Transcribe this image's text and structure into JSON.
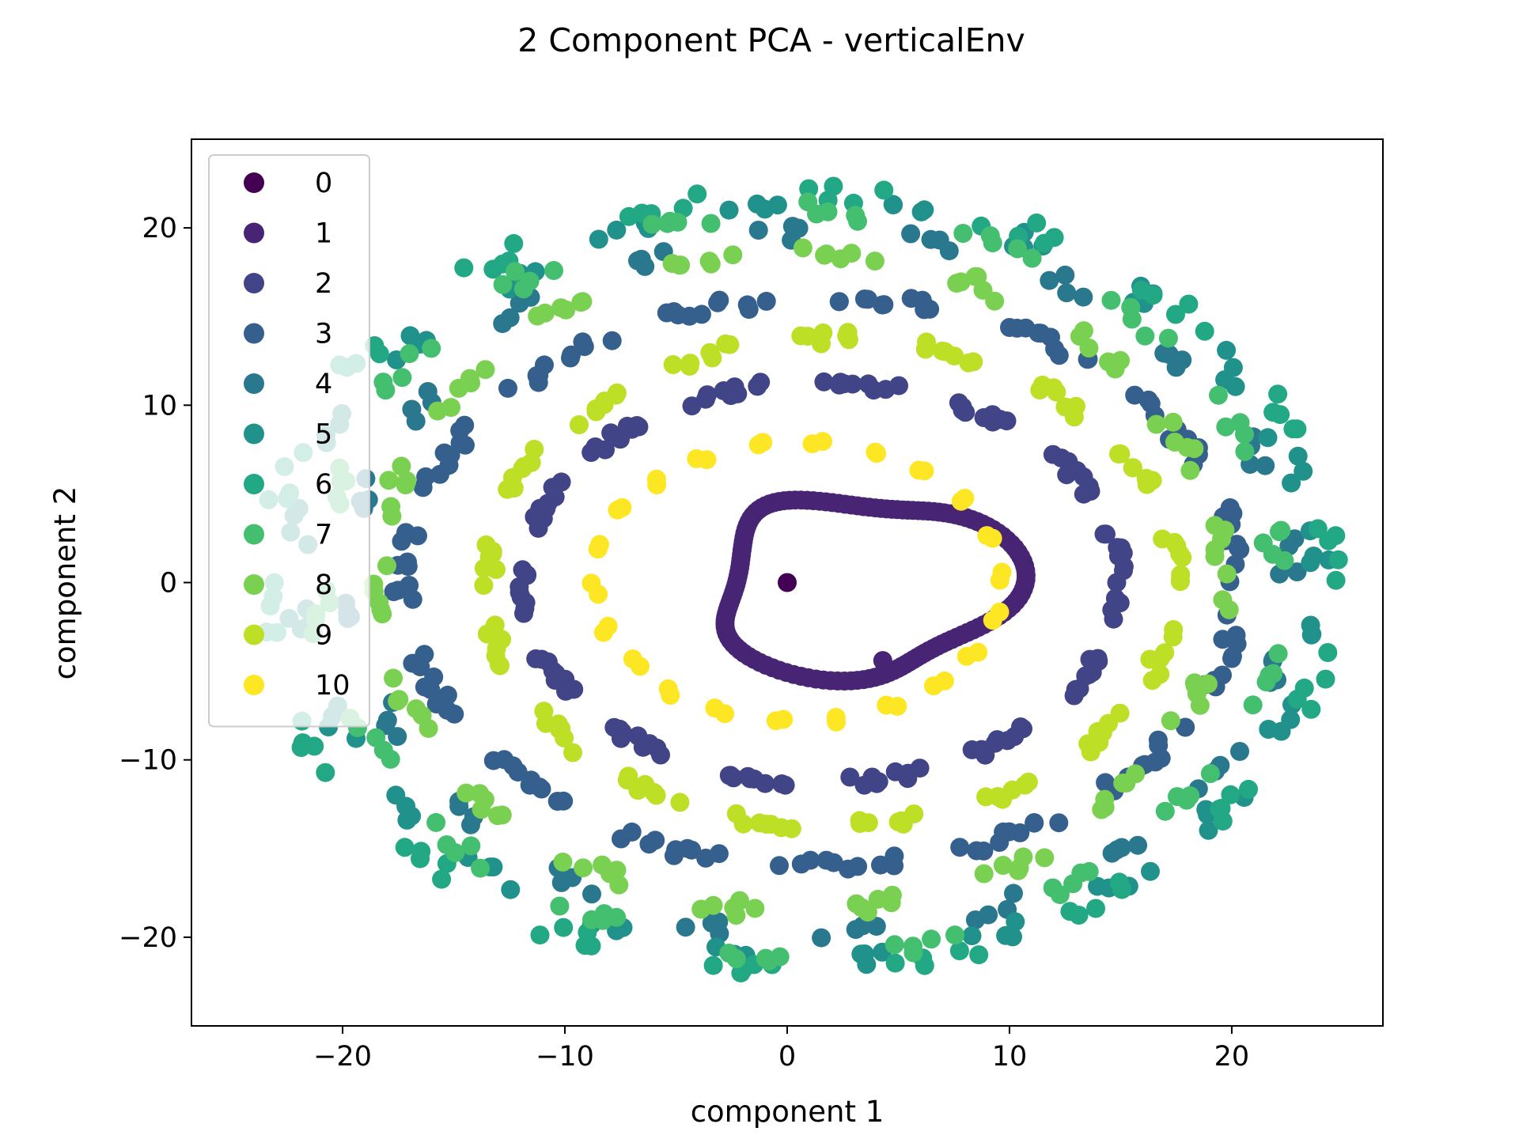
{
  "chart_data": {
    "type": "scatter",
    "title": "2 Component PCA - verticalEnv",
    "xlabel": "component 1",
    "ylabel": "component 2",
    "xlim": [
      -26.8,
      26.8
    ],
    "ylim": [
      -25,
      25
    ],
    "xticks": [
      -20,
      -10,
      0,
      10,
      20
    ],
    "yticks": [
      -20,
      -10,
      0,
      10,
      20
    ],
    "grid": false,
    "legend_position": "upper-left",
    "series": [
      {
        "name": "0",
        "color": "#440154",
        "shape": "single",
        "points": [
          [
            0,
            0
          ]
        ]
      },
      {
        "name": "1",
        "color": "#482475",
        "shape": "blob",
        "n": 150
      },
      {
        "name": "2",
        "color": "#414487",
        "shape": "ring",
        "cx": 1.5,
        "cy": 0,
        "rx": 13.5,
        "ry": 11.3,
        "n": 130,
        "arc": 9
      },
      {
        "name": "3",
        "color": "#355f8d",
        "shape": "ring",
        "cx": 1.5,
        "cy": 0,
        "rx": 18.8,
        "ry": 16.0,
        "n": 150,
        "arc": 10
      },
      {
        "name": "4",
        "color": "#2a788e",
        "shape": "ring",
        "cx": 1.5,
        "cy": 0,
        "rx": 21.0,
        "ry": 19.8,
        "n": 80,
        "arc": 4
      },
      {
        "name": "5",
        "color": "#21918c",
        "shape": "ring",
        "cx": 1.0,
        "cy": 0,
        "rx": 23.0,
        "ry": 21.2,
        "n": 95,
        "arc": 4
      },
      {
        "name": "6",
        "color": "#22a884",
        "shape": "ring",
        "cx": 0.5,
        "cy": 0,
        "rx": 24.0,
        "ry": 22.0,
        "n": 90,
        "arc": 5
      },
      {
        "name": "7",
        "color": "#44bf70",
        "shape": "ring",
        "cx": 0.5,
        "cy": 0,
        "rx": 21.5,
        "ry": 21.0,
        "n": 90,
        "arc": 5
      },
      {
        "name": "8",
        "color": "#7ad151",
        "shape": "ring",
        "cx": 0.5,
        "cy": 0,
        "rx": 19.0,
        "ry": 18.5,
        "n": 110,
        "arc": 6
      },
      {
        "name": "9",
        "color": "#bddf26",
        "shape": "ring",
        "cx": 2.0,
        "cy": 0,
        "rx": 15.5,
        "ry": 13.8,
        "n": 120,
        "arc": 7
      },
      {
        "name": "10",
        "color": "#fde725",
        "shape": "ring",
        "cx": 0.5,
        "cy": 0,
        "rx": 9.2,
        "ry": 7.9,
        "n": 44,
        "arc": 2
      }
    ]
  }
}
